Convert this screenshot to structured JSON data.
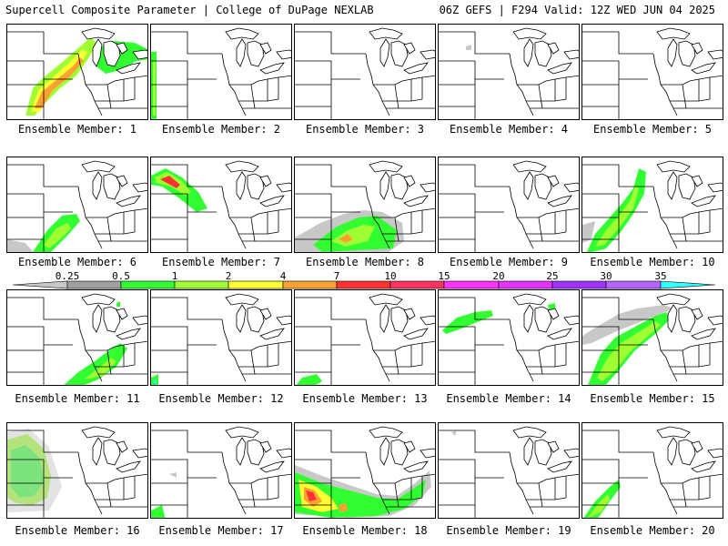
{
  "header": {
    "title": "Supercell Composite Parameter | College of DuPage NEXLAB",
    "run": "06Z GEFS | F294 Valid: 12Z WED JUN 04 2025"
  },
  "members": [
    {
      "label": "Ensemble Member: 1"
    },
    {
      "label": "Ensemble Member: 2"
    },
    {
      "label": "Ensemble Member: 3"
    },
    {
      "label": "Ensemble Member: 4"
    },
    {
      "label": "Ensemble Member: 5"
    },
    {
      "label": "Ensemble Member: 6"
    },
    {
      "label": "Ensemble Member: 7"
    },
    {
      "label": "Ensemble Member: 8"
    },
    {
      "label": "Ensemble Member: 9"
    },
    {
      "label": "Ensemble Member: 10"
    },
    {
      "label": "Ensemble Member: 11"
    },
    {
      "label": "Ensemble Member: 12"
    },
    {
      "label": "Ensemble Member: 13"
    },
    {
      "label": "Ensemble Member: 14"
    },
    {
      "label": "Ensemble Member: 15"
    },
    {
      "label": "Ensemble Member: 16"
    },
    {
      "label": "Ensemble Member: 17"
    },
    {
      "label": "Ensemble Member: 18"
    },
    {
      "label": "Ensemble Member: 19"
    },
    {
      "label": "Ensemble Member: 20"
    }
  ],
  "colorbar": {
    "labels": [
      "0.25",
      "0.5",
      "1",
      "2",
      "4",
      "7",
      "10",
      "15",
      "20",
      "25",
      "30",
      "35"
    ],
    "colors": [
      "#c8c8c8",
      "#a0a0a0",
      "#32ff32",
      "#a0ff32",
      "#ffff32",
      "#ffa032",
      "#ff3232",
      "#ff3264",
      "#ff32ff",
      "#e632ff",
      "#a032ff",
      "#b464ff",
      "#32ffff"
    ]
  }
}
